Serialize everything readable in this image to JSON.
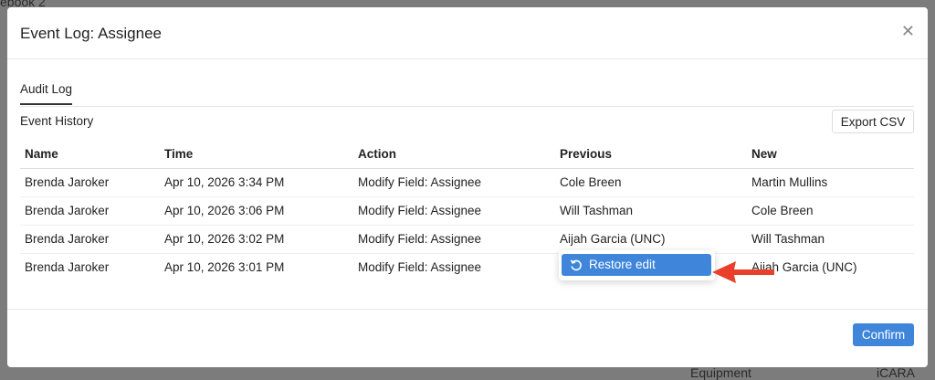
{
  "background": {
    "tab_fragment": "ebook 2",
    "label_fragment": "Equipment",
    "value_fragment": "iCARA"
  },
  "dialog": {
    "title": "Event Log: Assignee",
    "close_icon": "close-icon"
  },
  "tabs": [
    {
      "label": "Audit Log",
      "active": true
    }
  ],
  "section": {
    "title": "Event History",
    "export_label": "Export CSV"
  },
  "table": {
    "columns": [
      "Name",
      "Time",
      "Action",
      "Previous",
      "New"
    ],
    "rows": [
      [
        "Brenda Jaroker",
        "Apr 10, 2026 3:34 PM",
        "Modify Field: Assignee",
        "Cole Breen",
        "Martin Mullins"
      ],
      [
        "Brenda Jaroker",
        "Apr 10, 2026 3:06 PM",
        "Modify Field: Assignee",
        "Will Tashman",
        "Cole Breen"
      ],
      [
        "Brenda Jaroker",
        "Apr 10, 2026 3:02 PM",
        "Modify Field: Assignee",
        "Aijah Garcia (UNC)",
        "Will Tashman"
      ],
      [
        "Brenda Jaroker",
        "Apr 10, 2026 3:01 PM",
        "Modify Field: Assignee",
        "",
        "Aijah Garcia (UNC)"
      ]
    ]
  },
  "context_menu": {
    "items": [
      {
        "label": "Restore edit",
        "icon": "undo-icon"
      }
    ]
  },
  "footer": {
    "confirm_label": "Confirm"
  },
  "colors": {
    "accent": "#3f86db",
    "annotation_arrow": "#e8402a"
  }
}
